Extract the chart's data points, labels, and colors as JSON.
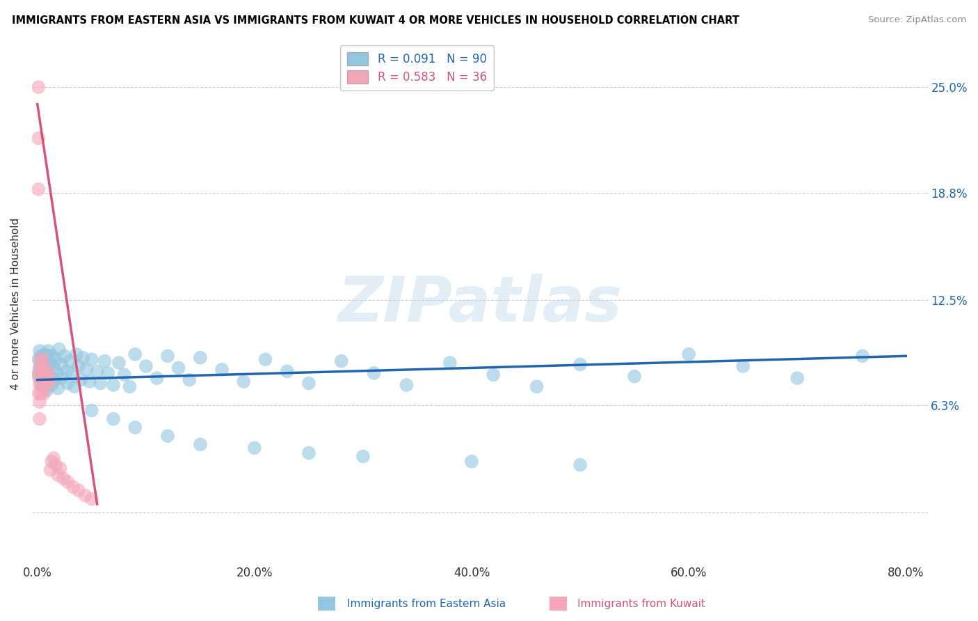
{
  "title": "IMMIGRANTS FROM EASTERN ASIA VS IMMIGRANTS FROM KUWAIT 4 OR MORE VEHICLES IN HOUSEHOLD CORRELATION CHART",
  "source": "Source: ZipAtlas.com",
  "ylabel": "4 or more Vehicles in Household",
  "y_tick_positions": [
    0.0,
    0.063,
    0.125,
    0.188,
    0.25
  ],
  "y_tick_labels": [
    "",
    "6.3%",
    "12.5%",
    "18.8%",
    "25.0%"
  ],
  "x_tick_positions": [
    0.0,
    0.2,
    0.4,
    0.6,
    0.8
  ],
  "x_tick_labels": [
    "0.0%",
    "20.0%",
    "40.0%",
    "60.0%",
    "80.0%"
  ],
  "x_min": -0.005,
  "x_max": 0.82,
  "y_min": -0.03,
  "y_max": 0.275,
  "legend_r1": "R = 0.091",
  "legend_n1": "N = 90",
  "legend_r2": "R = 0.583",
  "legend_n2": "N = 36",
  "color_blue": "#92c5de",
  "color_pink": "#f4a6b8",
  "color_blue_line": "#2166ac",
  "color_pink_line": "#d6537a",
  "color_blue_text": "#2166ac",
  "color_pink_text": "#d6537a",
  "watermark": "ZIPatlas",
  "footer_blue": "Immigrants from Eastern Asia",
  "footer_pink": "Immigrants from Kuwait",
  "eastern_asia_x": [
    0.001,
    0.001,
    0.002,
    0.002,
    0.002,
    0.003,
    0.003,
    0.003,
    0.004,
    0.004,
    0.005,
    0.005,
    0.005,
    0.006,
    0.006,
    0.007,
    0.007,
    0.008,
    0.008,
    0.009,
    0.009,
    0.01,
    0.01,
    0.011,
    0.012,
    0.013,
    0.014,
    0.015,
    0.016,
    0.017,
    0.018,
    0.019,
    0.02,
    0.022,
    0.023,
    0.025,
    0.027,
    0.028,
    0.03,
    0.032,
    0.034,
    0.036,
    0.038,
    0.04,
    0.042,
    0.045,
    0.048,
    0.05,
    0.055,
    0.058,
    0.062,
    0.065,
    0.07,
    0.075,
    0.08,
    0.085,
    0.09,
    0.1,
    0.11,
    0.12,
    0.13,
    0.14,
    0.15,
    0.17,
    0.19,
    0.21,
    0.23,
    0.25,
    0.28,
    0.31,
    0.34,
    0.38,
    0.42,
    0.46,
    0.5,
    0.55,
    0.6,
    0.65,
    0.7,
    0.76,
    0.05,
    0.07,
    0.09,
    0.12,
    0.15,
    0.2,
    0.25,
    0.3,
    0.4,
    0.5
  ],
  "eastern_asia_y": [
    0.09,
    0.082,
    0.095,
    0.085,
    0.078,
    0.088,
    0.08,
    0.092,
    0.075,
    0.086,
    0.091,
    0.083,
    0.076,
    0.087,
    0.08,
    0.093,
    0.073,
    0.085,
    0.079,
    0.092,
    0.072,
    0.086,
    0.095,
    0.08,
    0.088,
    0.075,
    0.092,
    0.085,
    0.078,
    0.09,
    0.082,
    0.073,
    0.096,
    0.087,
    0.079,
    0.092,
    0.083,
    0.076,
    0.089,
    0.082,
    0.074,
    0.093,
    0.086,
    0.078,
    0.091,
    0.084,
    0.077,
    0.09,
    0.083,
    0.076,
    0.089,
    0.082,
    0.075,
    0.088,
    0.081,
    0.074,
    0.093,
    0.086,
    0.079,
    0.092,
    0.085,
    0.078,
    0.091,
    0.084,
    0.077,
    0.09,
    0.083,
    0.076,
    0.089,
    0.082,
    0.075,
    0.088,
    0.081,
    0.074,
    0.087,
    0.08,
    0.093,
    0.086,
    0.079,
    0.092,
    0.06,
    0.055,
    0.05,
    0.045,
    0.04,
    0.038,
    0.035,
    0.033,
    0.03,
    0.028
  ],
  "kuwait_x": [
    0.001,
    0.001,
    0.001,
    0.001,
    0.001,
    0.002,
    0.002,
    0.002,
    0.002,
    0.003,
    0.003,
    0.003,
    0.004,
    0.004,
    0.005,
    0.005,
    0.006,
    0.006,
    0.007,
    0.007,
    0.008,
    0.009,
    0.01,
    0.011,
    0.012,
    0.013,
    0.015,
    0.017,
    0.019,
    0.021,
    0.024,
    0.028,
    0.033,
    0.038,
    0.044,
    0.05
  ],
  "kuwait_y": [
    0.25,
    0.22,
    0.19,
    0.08,
    0.07,
    0.085,
    0.075,
    0.065,
    0.055,
    0.09,
    0.08,
    0.07,
    0.085,
    0.075,
    0.09,
    0.082,
    0.078,
    0.07,
    0.085,
    0.077,
    0.08,
    0.075,
    0.082,
    0.078,
    0.025,
    0.03,
    0.032,
    0.028,
    0.022,
    0.026,
    0.02,
    0.018,
    0.015,
    0.013,
    0.01,
    0.008
  ],
  "blue_trend_x": [
    0.0,
    0.8
  ],
  "blue_trend_y": [
    0.078,
    0.092
  ],
  "pink_trend_x_start": 0.0,
  "pink_trend_x_end": 0.055,
  "pink_trend_y_start": 0.24,
  "pink_trend_y_end": 0.005
}
